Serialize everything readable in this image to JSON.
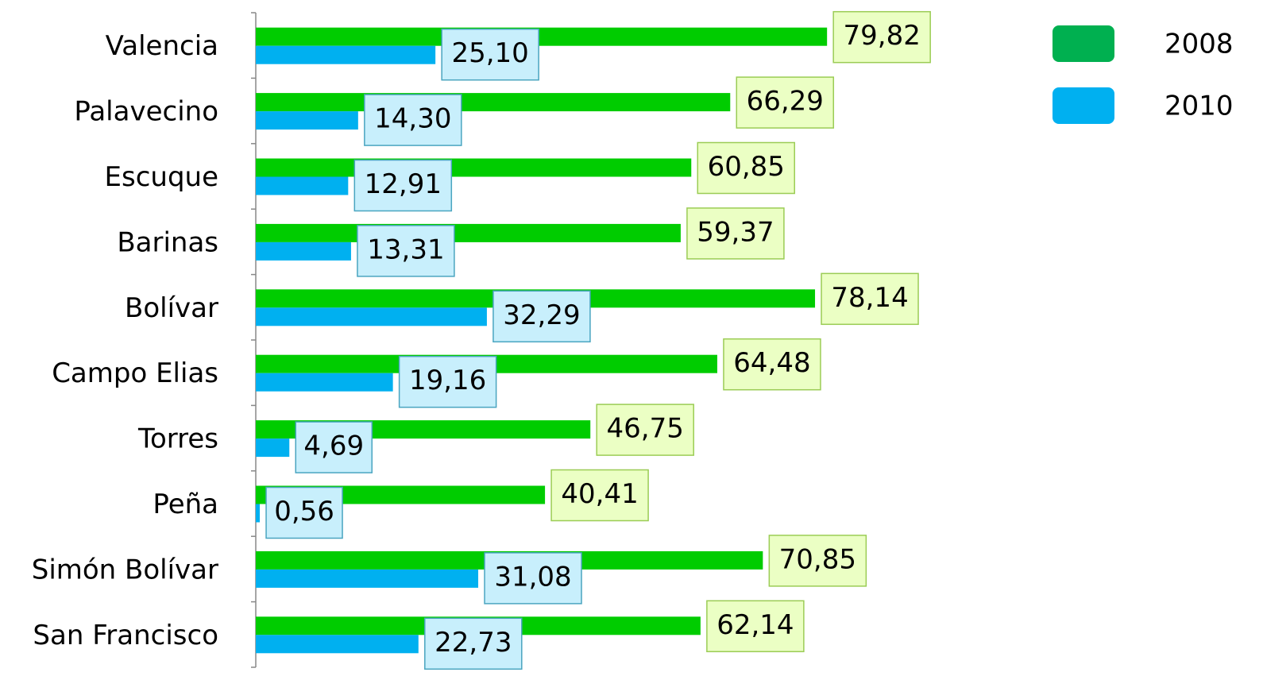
{
  "chart_data": {
    "type": "barh",
    "categories": [
      "Valencia",
      "Palavecino",
      "Escuque",
      "Barinas",
      "Bolívar",
      "Campo Elias",
      "Torres",
      "Peña",
      "Simón Bolívar",
      "San Francisco"
    ],
    "series": [
      {
        "name": "2008",
        "color": "#00cc00",
        "legend_color": "#00b050",
        "values": [
          79.82,
          66.29,
          60.85,
          59.37,
          78.14,
          64.48,
          46.75,
          40.41,
          70.85,
          62.14
        ],
        "value_labels": [
          "79,82",
          "66,29",
          "60,85",
          "59,37",
          "78,14",
          "64,48",
          "46,75",
          "40,41",
          "70,85",
          "62,14"
        ]
      },
      {
        "name": "2010",
        "color": "#00b0f0",
        "legend_color": "#00b0f0",
        "values": [
          25.1,
          14.3,
          12.91,
          13.31,
          32.29,
          19.16,
          4.69,
          0.56,
          31.08,
          22.73
        ],
        "value_labels": [
          "25,10",
          "14,30",
          "12,91",
          "13,31",
          "32,29",
          "19,16",
          "4,69",
          "0,56",
          "31,08",
          "22,73"
        ]
      }
    ],
    "legend": "top-right"
  }
}
